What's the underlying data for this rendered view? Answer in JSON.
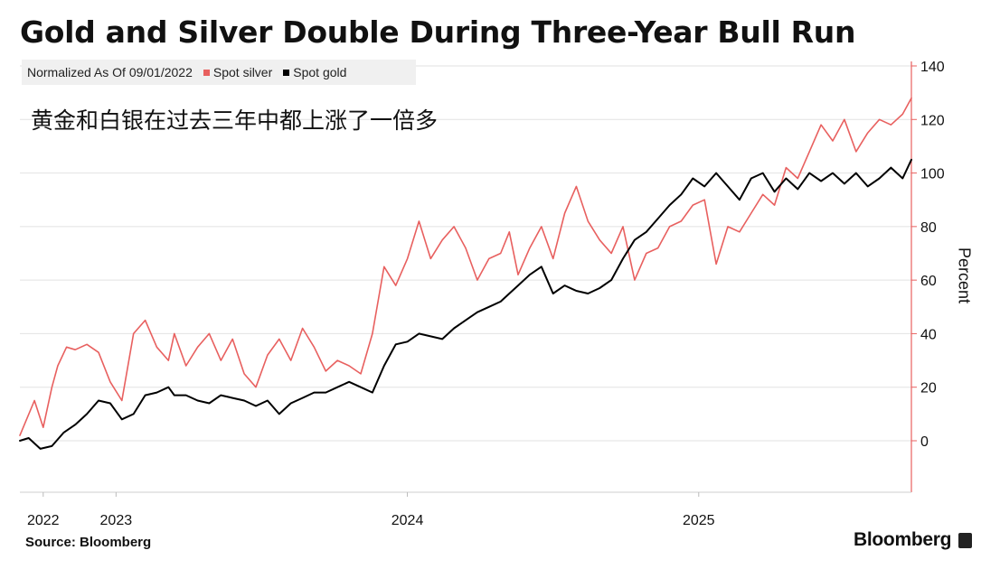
{
  "header": {
    "title": "Gold and Silver Double During Three-Year Bull Run",
    "annotation": "黄金和白银在过去三年中都上涨了一倍多"
  },
  "legend": {
    "normalized_label": "Normalized As Of 09/01/2022",
    "items": [
      {
        "label": "Spot silver",
        "color": "#e8605f"
      },
      {
        "label": "Spot gold",
        "color": "#000000"
      }
    ]
  },
  "footer": {
    "source": "Source: Bloomberg",
    "brand": "Bloomberg"
  },
  "chart_data": {
    "type": "line",
    "title": "Gold and Silver Double During Three-Year Bull Run",
    "ylabel": "Percent",
    "ylim": [
      -20,
      140
    ],
    "yticks": [
      0,
      20,
      40,
      60,
      80,
      100,
      120,
      140
    ],
    "xlim": [
      2022.67,
      2025.73
    ],
    "xticks": [
      {
        "label": "2022",
        "x": 2022.75
      },
      {
        "label": "2023",
        "x": 2023.0
      },
      {
        "label": "2024",
        "x": 2024.0
      },
      {
        "label": "2025",
        "x": 2025.0
      }
    ],
    "legend_placement": "top-left",
    "grid": "horizontal",
    "series": [
      {
        "name": "Spot silver",
        "color": "#e8605f",
        "x": [
          2022.67,
          2022.72,
          2022.75,
          2022.78,
          2022.8,
          2022.83,
          2022.86,
          2022.9,
          2022.94,
          2022.98,
          2023.02,
          2023.06,
          2023.1,
          2023.14,
          2023.18,
          2023.2,
          2023.24,
          2023.28,
          2023.32,
          2023.36,
          2023.4,
          2023.44,
          2023.48,
          2023.52,
          2023.56,
          2023.6,
          2023.64,
          2023.68,
          2023.72,
          2023.76,
          2023.8,
          2023.84,
          2023.88,
          2023.92,
          2023.96,
          2024.0,
          2024.04,
          2024.08,
          2024.12,
          2024.16,
          2024.2,
          2024.24,
          2024.28,
          2024.32,
          2024.35,
          2024.38,
          2024.42,
          2024.46,
          2024.5,
          2024.54,
          2024.58,
          2024.62,
          2024.66,
          2024.7,
          2024.74,
          2024.78,
          2024.82,
          2024.86,
          2024.9,
          2024.94,
          2024.98,
          2025.02,
          2025.06,
          2025.1,
          2025.14,
          2025.18,
          2025.22,
          2025.26,
          2025.3,
          2025.34,
          2025.38,
          2025.42,
          2025.46,
          2025.5,
          2025.54,
          2025.58,
          2025.62,
          2025.66,
          2025.7,
          2025.73
        ],
        "values": [
          2,
          15,
          5,
          20,
          28,
          35,
          34,
          36,
          33,
          22,
          15,
          40,
          45,
          35,
          30,
          40,
          28,
          35,
          40,
          30,
          38,
          25,
          20,
          32,
          38,
          30,
          42,
          35,
          26,
          30,
          28,
          25,
          40,
          65,
          58,
          68,
          82,
          68,
          75,
          80,
          72,
          60,
          68,
          70,
          78,
          62,
          72,
          80,
          68,
          85,
          95,
          82,
          75,
          70,
          80,
          60,
          70,
          72,
          80,
          82,
          88,
          90,
          66,
          80,
          78,
          85,
          92,
          88,
          102,
          98,
          108,
          118,
          112,
          120,
          108,
          115,
          120,
          118,
          122,
          128
        ]
      },
      {
        "name": "Spot gold",
        "color": "#000000",
        "x": [
          2022.67,
          2022.7,
          2022.74,
          2022.78,
          2022.82,
          2022.86,
          2022.9,
          2022.94,
          2022.98,
          2023.02,
          2023.06,
          2023.1,
          2023.14,
          2023.18,
          2023.2,
          2023.24,
          2023.28,
          2023.32,
          2023.36,
          2023.4,
          2023.44,
          2023.48,
          2023.52,
          2023.56,
          2023.6,
          2023.64,
          2023.68,
          2023.72,
          2023.76,
          2023.8,
          2023.84,
          2023.88,
          2023.92,
          2023.96,
          2024.0,
          2024.04,
          2024.08,
          2024.12,
          2024.16,
          2024.2,
          2024.24,
          2024.28,
          2024.32,
          2024.35,
          2024.38,
          2024.42,
          2024.46,
          2024.5,
          2024.54,
          2024.58,
          2024.62,
          2024.66,
          2024.7,
          2024.74,
          2024.78,
          2024.82,
          2024.86,
          2024.9,
          2024.94,
          2024.98,
          2025.02,
          2025.06,
          2025.1,
          2025.14,
          2025.18,
          2025.22,
          2025.26,
          2025.3,
          2025.34,
          2025.38,
          2025.42,
          2025.46,
          2025.5,
          2025.54,
          2025.58,
          2025.62,
          2025.66,
          2025.7,
          2025.73
        ],
        "values": [
          0,
          1,
          -3,
          -2,
          3,
          6,
          10,
          15,
          14,
          8,
          10,
          17,
          18,
          20,
          17,
          17,
          15,
          14,
          17,
          16,
          15,
          13,
          15,
          10,
          14,
          16,
          18,
          18,
          20,
          22,
          20,
          18,
          28,
          36,
          37,
          40,
          39,
          38,
          42,
          45,
          48,
          50,
          52,
          55,
          58,
          62,
          65,
          55,
          58,
          56,
          55,
          57,
          60,
          68,
          75,
          78,
          83,
          88,
          92,
          98,
          95,
          100,
          95,
          90,
          98,
          100,
          93,
          98,
          94,
          100,
          97,
          100,
          96,
          100,
          95,
          98,
          102,
          98,
          105
        ]
      }
    ]
  }
}
